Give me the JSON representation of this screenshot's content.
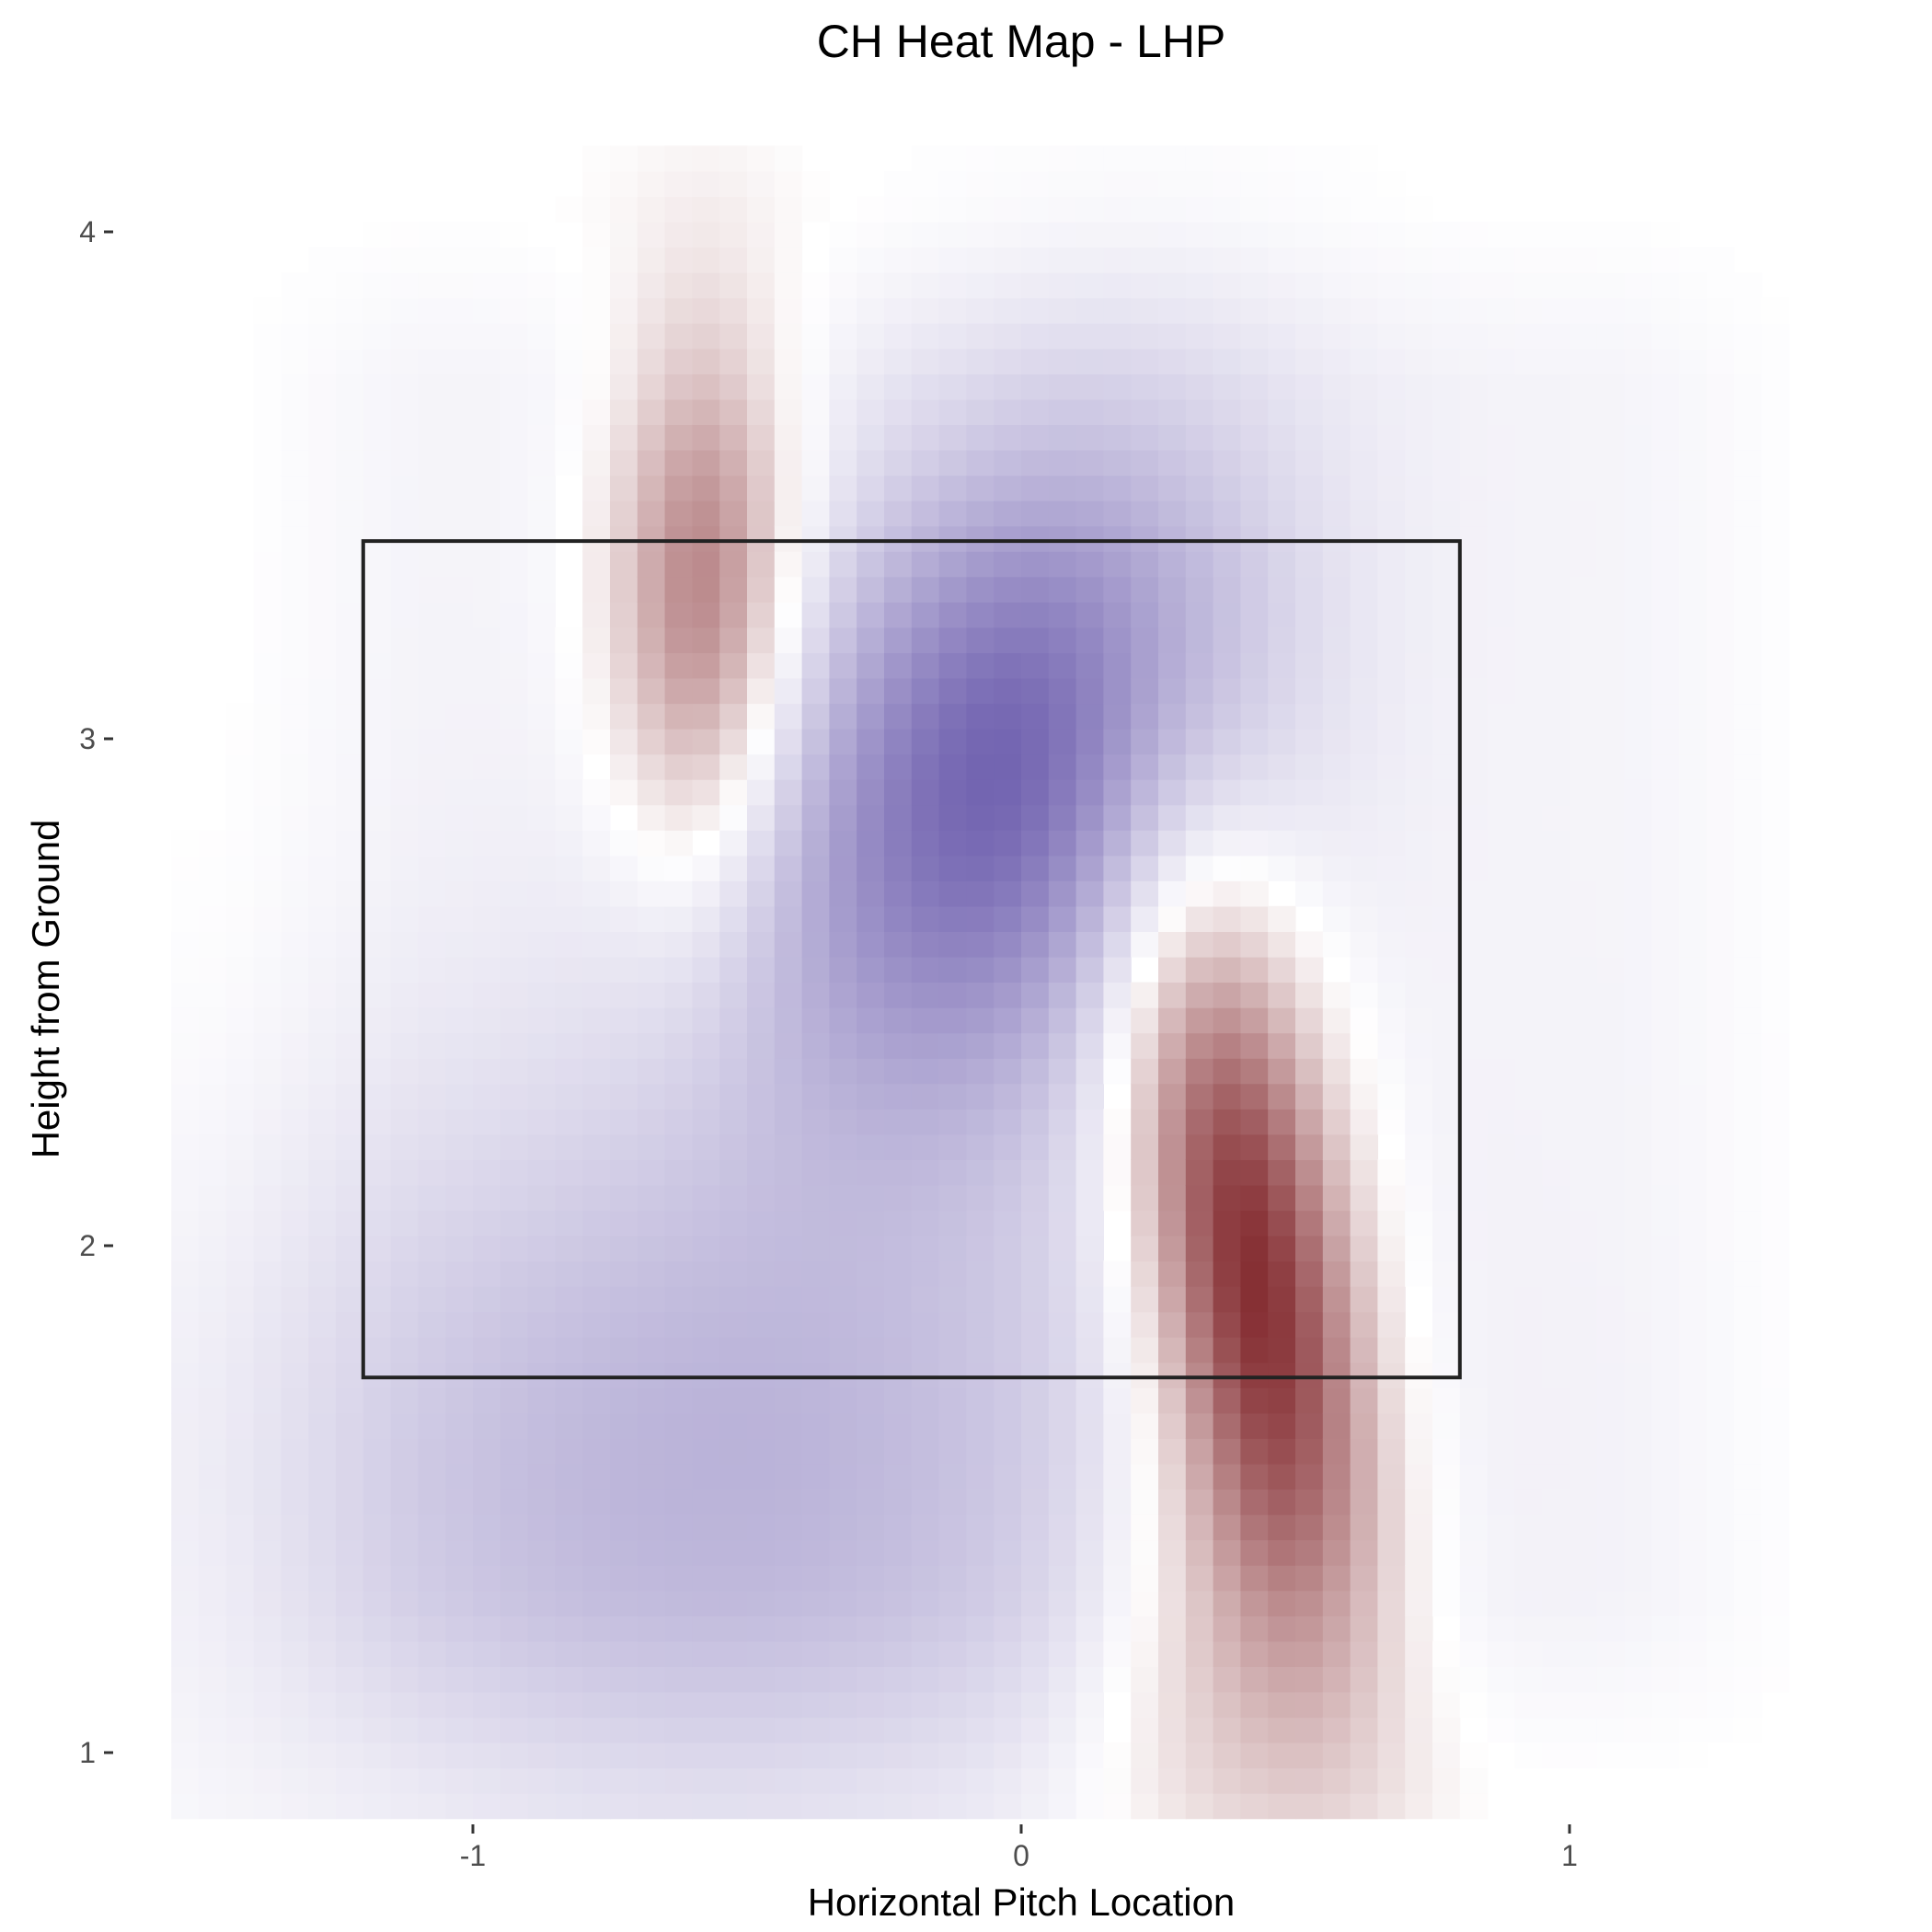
{
  "chart_data": {
    "type": "heatmap",
    "title": "CH Heat Map - LHP",
    "xlabel": "Horizontal Pitch Location",
    "ylabel": "Height from Ground",
    "xlim": [
      -1.9,
      1.9
    ],
    "ylim": [
      0.85,
      4.15
    ],
    "x_ticks": [
      {
        "value": -1,
        "label": "-1"
      },
      {
        "value": 0,
        "label": "0"
      },
      {
        "value": 1,
        "label": "1"
      }
    ],
    "y_ticks": [
      {
        "value": 1,
        "label": "1"
      },
      {
        "value": 2,
        "label": "2"
      },
      {
        "value": 3,
        "label": "3"
      },
      {
        "value": 4,
        "label": "4"
      }
    ],
    "grid": false,
    "legend": "none",
    "strike_zone": {
      "x": [
        -1.2,
        0.8
      ],
      "y": [
        1.74,
        3.39
      ]
    },
    "field_range": {
      "x": [
        -1.55,
        1.55
      ],
      "y": [
        0.87,
        4.15
      ]
    },
    "color_scale": {
      "low": "#6e5fae",
      "mid": "#ffffff",
      "high": "#730f14"
    },
    "components": [
      {
        "cx": 0.42,
        "cy": 1.95,
        "sx": 0.16,
        "sy": 0.55,
        "rho": -0.5,
        "amp": 1.0
      },
      {
        "cx": 0.33,
        "cy": 1.2,
        "sx": 0.16,
        "sy": 0.35,
        "rho": 0.0,
        "amp": 0.25
      },
      {
        "cx": -0.58,
        "cy": 3.28,
        "sx": 0.12,
        "sy": 0.38,
        "rho": 0.0,
        "amp": 0.62
      },
      {
        "cx": -0.03,
        "cy": 2.95,
        "sx": 0.3,
        "sy": 0.45,
        "rho": 0.3,
        "amp": -0.9
      },
      {
        "cx": -0.55,
        "cy": 1.55,
        "sx": 0.6,
        "sy": 0.55,
        "rho": 0.0,
        "amp": -0.4
      }
    ],
    "base_level": -0.07,
    "base_extent": {
      "x": [
        -1.45,
        1.45
      ],
      "y": [
        0.95,
        4.05
      ]
    }
  }
}
